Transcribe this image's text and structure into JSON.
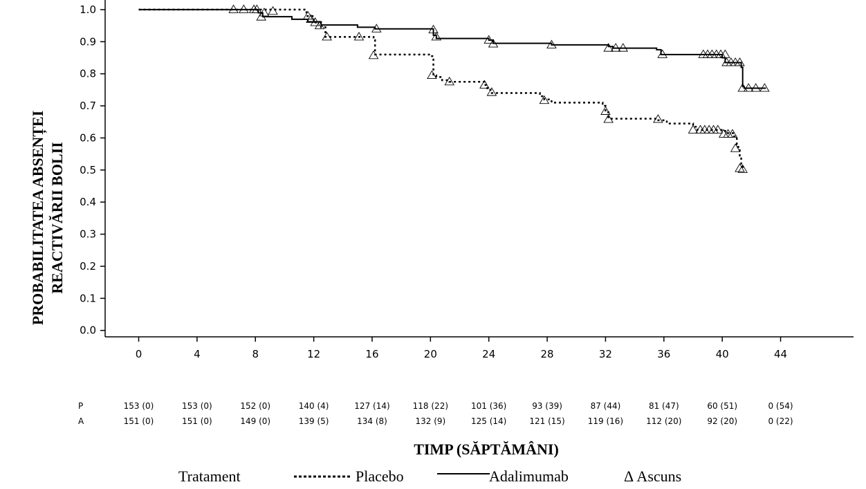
{
  "chart_data": {
    "type": "line",
    "title": "",
    "xlabel": "TIMP (SĂPTĂMÂNI)",
    "ylabel_lines": [
      "PROBABILITATEA ABSENȚEI",
      "REACTIVĂRII BOLII"
    ],
    "x_ticks": [
      0,
      4,
      8,
      12,
      16,
      20,
      24,
      28,
      32,
      36,
      40,
      44
    ],
    "y_ticks": [
      0.0,
      0.1,
      0.2,
      0.3,
      0.4,
      0.5,
      0.6,
      0.7,
      0.8,
      0.9,
      1.0
    ],
    "y_tick_labels": [
      "0.0",
      "0.1",
      "0.2",
      "0.3",
      "0.4",
      "0.5",
      "0.6",
      "0.7",
      "0.8",
      "0.9",
      "1.0"
    ],
    "xlim": [
      -2.3,
      49
    ],
    "ylim": [
      -0.02,
      1.03
    ],
    "grid": false,
    "legend": {
      "title": "Tratament",
      "placebo_label": "Placebo",
      "adalimumab_label": "Adalimumab",
      "censored_label": "Δ Ascuns",
      "placement": "bottom"
    },
    "series": [
      {
        "name": "Placebo",
        "style": "dotted",
        "steps": [
          [
            0,
            1.0
          ],
          [
            8,
            1.0
          ],
          [
            11.5,
            0.98
          ],
          [
            12,
            0.96
          ],
          [
            12.5,
            0.945
          ],
          [
            12.8,
            0.915
          ],
          [
            16.1,
            0.905
          ],
          [
            16.2,
            0.86
          ],
          [
            20,
            0.855
          ],
          [
            20.2,
            0.795
          ],
          [
            20.4,
            0.79
          ],
          [
            20.8,
            0.78
          ],
          [
            21.3,
            0.775
          ],
          [
            23.7,
            0.765
          ],
          [
            23.9,
            0.75
          ],
          [
            24.2,
            0.74
          ],
          [
            27.5,
            0.73
          ],
          [
            27.8,
            0.72
          ],
          [
            28.3,
            0.71
          ],
          [
            31.8,
            0.7
          ],
          [
            32,
            0.68
          ],
          [
            32.2,
            0.66
          ],
          [
            35.5,
            0.655
          ],
          [
            36.2,
            0.645
          ],
          [
            38,
            0.635
          ],
          [
            38.3,
            0.625
          ],
          [
            40.2,
            0.615
          ],
          [
            40.8,
            0.605
          ],
          [
            41,
            0.58
          ],
          [
            41.1,
            0.565
          ],
          [
            41.2,
            0.545
          ],
          [
            41.3,
            0.52
          ],
          [
            41.4,
            0.5
          ]
        ],
        "end_x": 41.4,
        "censored": [
          [
            6.5,
            1.0
          ],
          [
            7.2,
            1.0
          ],
          [
            7.9,
            1.0
          ],
          [
            8.6,
            0.99
          ],
          [
            9.2,
            0.995
          ],
          [
            11.6,
            0.98
          ],
          [
            12.1,
            0.96
          ],
          [
            12.4,
            0.95
          ],
          [
            12.9,
            0.915
          ],
          [
            15.1,
            0.915
          ],
          [
            16.1,
            0.857
          ],
          [
            20.1,
            0.795
          ],
          [
            21.3,
            0.775
          ],
          [
            23.7,
            0.765
          ],
          [
            24.2,
            0.742
          ],
          [
            27.8,
            0.717
          ],
          [
            32,
            0.683
          ],
          [
            32.2,
            0.658
          ],
          [
            35.6,
            0.658
          ],
          [
            38,
            0.625
          ],
          [
            38.5,
            0.625
          ],
          [
            38.8,
            0.625
          ],
          [
            39.1,
            0.625
          ],
          [
            39.4,
            0.625
          ],
          [
            39.7,
            0.625
          ],
          [
            40.1,
            0.612
          ],
          [
            40.4,
            0.612
          ],
          [
            40.7,
            0.612
          ],
          [
            40.9,
            0.567
          ],
          [
            41.2,
            0.505
          ],
          [
            41.4,
            0.502
          ]
        ]
      },
      {
        "name": "Adalimumab",
        "style": "solid",
        "steps": [
          [
            0,
            1.0
          ],
          [
            8.2,
            0.99
          ],
          [
            8.5,
            0.978
          ],
          [
            10.5,
            0.97
          ],
          [
            11.6,
            0.962
          ],
          [
            12.5,
            0.952
          ],
          [
            15,
            0.945
          ],
          [
            16.2,
            0.94
          ],
          [
            20.2,
            0.92
          ],
          [
            20.4,
            0.91
          ],
          [
            24,
            0.905
          ],
          [
            24.3,
            0.895
          ],
          [
            28.3,
            0.89
          ],
          [
            32.2,
            0.885
          ],
          [
            32.5,
            0.88
          ],
          [
            35.5,
            0.875
          ],
          [
            35.8,
            0.86
          ],
          [
            40,
            0.85
          ],
          [
            40.2,
            0.835
          ],
          [
            41.3,
            0.82
          ],
          [
            41.4,
            0.76
          ],
          [
            41.5,
            0.755
          ]
        ],
        "end_x": 43,
        "censored": [
          [
            8.1,
            1.0
          ],
          [
            8.4,
            0.977
          ],
          [
            11.8,
            0.97
          ],
          [
            16.3,
            0.94
          ],
          [
            20.2,
            0.937
          ],
          [
            20.4,
            0.915
          ],
          [
            24,
            0.905
          ],
          [
            24.3,
            0.893
          ],
          [
            28.3,
            0.89
          ],
          [
            32.2,
            0.88
          ],
          [
            32.7,
            0.88
          ],
          [
            33.2,
            0.88
          ],
          [
            35.9,
            0.86
          ],
          [
            38.7,
            0.86
          ],
          [
            39,
            0.86
          ],
          [
            39.3,
            0.86
          ],
          [
            39.6,
            0.86
          ],
          [
            39.9,
            0.86
          ],
          [
            40.2,
            0.86
          ],
          [
            40.3,
            0.835
          ],
          [
            40.6,
            0.835
          ],
          [
            40.9,
            0.835
          ],
          [
            41.2,
            0.835
          ],
          [
            41.4,
            0.755
          ],
          [
            41.8,
            0.755
          ],
          [
            42.3,
            0.755
          ],
          [
            42.9,
            0.755
          ]
        ]
      }
    ],
    "risk_table": {
      "rows": [
        {
          "label": "P",
          "values": [
            "153 (0)",
            "153 (0)",
            "152 (0)",
            "140 (4)",
            "127 (14)",
            "118 (22)",
            "101 (36)",
            "93 (39)",
            "87 (44)",
            "81 (47)",
            "60 (51)",
            "0 (54)"
          ]
        },
        {
          "label": "A",
          "values": [
            "151 (0)",
            "151 (0)",
            "149 (0)",
            "139 (5)",
            "134 (8)",
            "132 (9)",
            "125 (14)",
            "121 (15)",
            "119 (16)",
            "112 (20)",
            "92 (20)",
            "0 (22)"
          ]
        }
      ]
    }
  }
}
